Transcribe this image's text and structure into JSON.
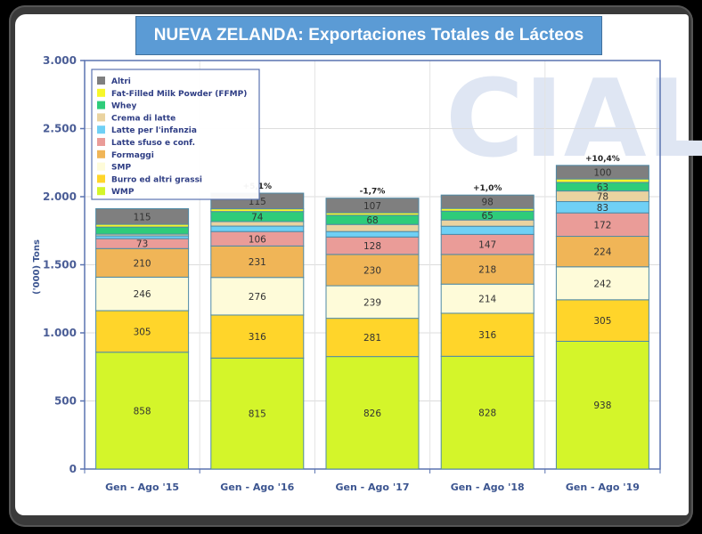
{
  "header": {
    "title": "NUEVA ZELANDA: Exportaciones Totales de Lácteos"
  },
  "watermark": "CIAL",
  "chart_data": {
    "type": "bar",
    "stacked": true,
    "title": "NUEVA ZELANDA: Exportaciones Totales de Lácteos",
    "xlabel": "",
    "ylabel": "('000) Tons",
    "ylim": [
      0,
      3000
    ],
    "yticks": [
      0,
      500,
      1000,
      1500,
      2000,
      2500,
      3000
    ],
    "ytick_labels": [
      "0",
      "500",
      "1.000",
      "1.500",
      "2.000",
      "2.500",
      "3.000"
    ],
    "grid": true,
    "legend_position": "top-left",
    "categories": [
      "Gen - Ago '15",
      "Gen - Ago '16",
      "Gen - Ago '17",
      "Gen - Ago '18",
      "Gen - Ago '19"
    ],
    "growth_labels": [
      "",
      "+5,1%",
      "-1,7%",
      "+1,0%",
      "+10,4%"
    ],
    "series": [
      {
        "name": "WMP",
        "color": "#d4f52a",
        "values": [
          858,
          815,
          826,
          828,
          938
        ]
      },
      {
        "name": "Burro ed altri grassi",
        "color": "#ffd52a",
        "values": [
          305,
          316,
          281,
          316,
          305
        ]
      },
      {
        "name": "SMP",
        "color": "#fefbd9",
        "values": [
          246,
          276,
          239,
          214,
          242
        ]
      },
      {
        "name": "Formaggi",
        "color": "#f0b557",
        "values": [
          210,
          231,
          230,
          218,
          224
        ]
      },
      {
        "name": "Latte sfuso e conf.",
        "color": "#ea9c98",
        "values": [
          73,
          106,
          128,
          147,
          172
        ]
      },
      {
        "name": "Latte per l'infanzia",
        "color": "#6fd0f5",
        "values": [
          null,
          null,
          null,
          null,
          83
        ]
      },
      {
        "name": "Crema di latte",
        "color": "#ead3a0",
        "values": [
          null,
          null,
          null,
          null,
          78
        ]
      },
      {
        "name": "Whey",
        "color": "#2ecc7a",
        "values": [
          null,
          74,
          68,
          65,
          63
        ]
      },
      {
        "name": "Fat-Filled Milk Powder (FFMP)",
        "color": "#f7f72a",
        "values": [
          null,
          null,
          null,
          null,
          null
        ]
      },
      {
        "name": "Altri",
        "color": "#7f7f7f",
        "values": [
          115,
          115,
          107,
          98,
          100
        ]
      }
    ],
    "estimated": {
      "note": "Unlabeled segments; values approximated from pixel heights, used only for drawing",
      "Latte per l'infanzia": [
        20,
        40,
        40,
        60,
        null
      ],
      "Crema di latte": [
        13,
        33,
        52,
        46,
        null
      ],
      "Whey": [
        52,
        null,
        null,
        null,
        null
      ],
      "Fat-Filled Milk Powder (FFMP)": [
        20,
        20,
        18,
        20,
        25
      ]
    },
    "legend_order": [
      "Altri",
      "Fat-Filled Milk Powder (FFMP)",
      "Whey",
      "Crema di latte",
      "Latte per l'infanzia",
      "Latte sfuso e conf.",
      "Formaggi",
      "SMP",
      "Burro ed altri grassi",
      "WMP"
    ]
  }
}
